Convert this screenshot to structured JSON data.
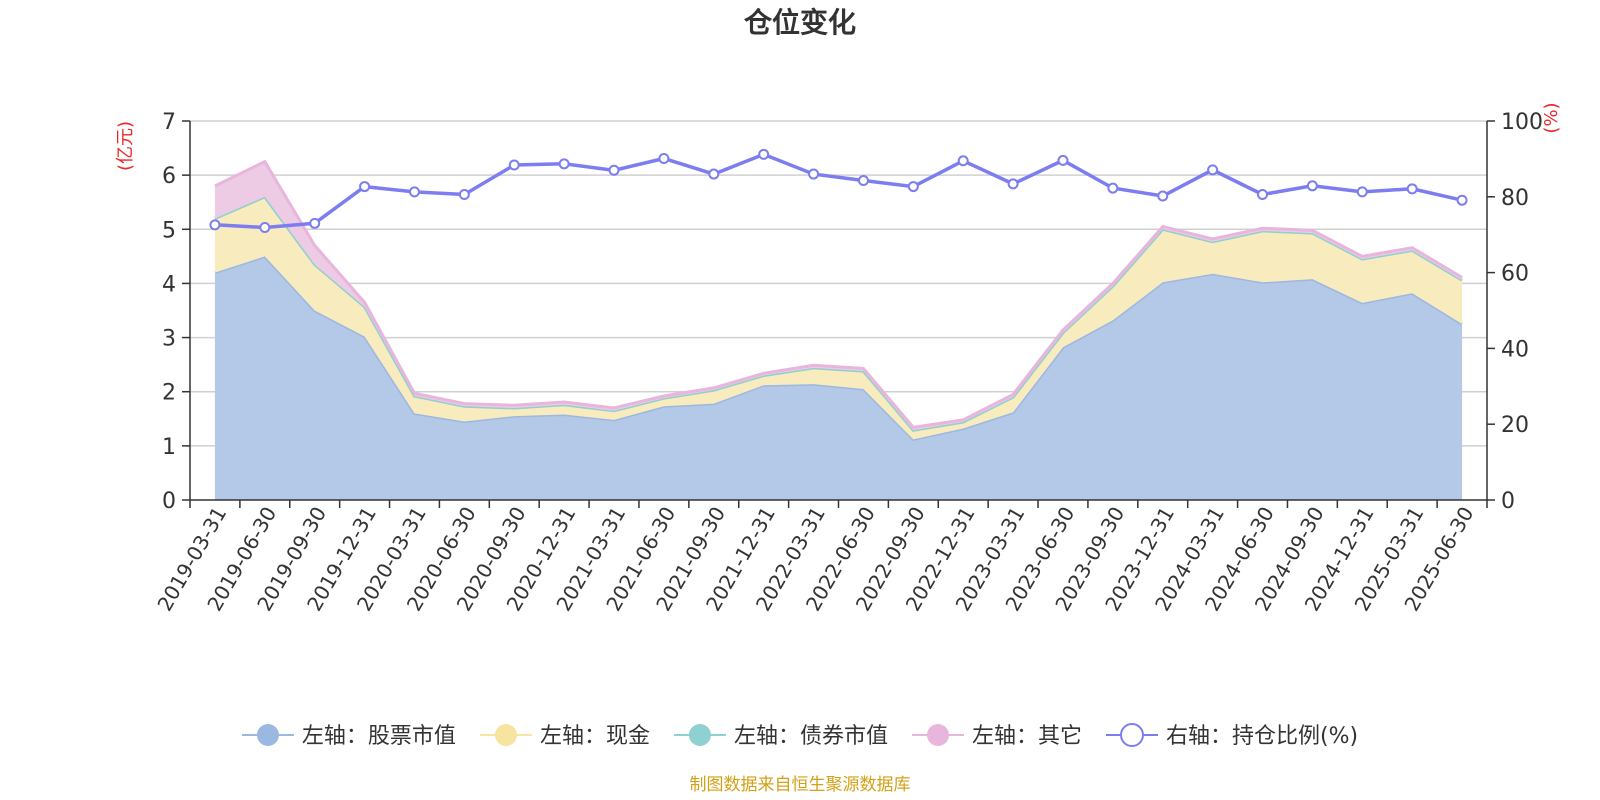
{
  "chart_data": {
    "type": "area",
    "title": "仓位变化",
    "left_unit": "(亿元)",
    "right_unit": "(%)",
    "ylim_left": [
      0,
      7
    ],
    "yticks_left": [
      0,
      1,
      2,
      3,
      4,
      5,
      6,
      7
    ],
    "ylim_right": [
      0,
      100
    ],
    "yticks_right": [
      0,
      20,
      40,
      60,
      80,
      100
    ],
    "grid": true,
    "legend_position": "bottom",
    "categories": [
      "2019-03-31",
      "2019-06-30",
      "2019-09-30",
      "2019-12-31",
      "2020-03-31",
      "2020-06-30",
      "2020-09-30",
      "2020-12-31",
      "2021-03-31",
      "2021-06-30",
      "2021-09-30",
      "2021-12-31",
      "2022-03-31",
      "2022-06-30",
      "2022-09-30",
      "2022-12-31",
      "2023-03-31",
      "2023-06-30",
      "2023-09-30",
      "2023-12-31",
      "2024-03-31",
      "2024-06-30",
      "2024-09-30",
      "2024-12-31",
      "2025-03-31",
      "2025-06-30"
    ],
    "series": [
      {
        "name": "左轴：股票市值",
        "axis": "left",
        "stack": true,
        "color": "#9bb8e0",
        "fill": "#b4c8e8",
        "values": [
          4.2,
          4.5,
          3.5,
          3.02,
          1.6,
          1.45,
          1.55,
          1.58,
          1.48,
          1.73,
          1.78,
          2.12,
          2.14,
          2.05,
          1.12,
          1.32,
          1.62,
          2.82,
          3.32,
          4.02,
          4.18,
          4.02,
          4.08,
          3.64,
          3.82,
          3.25
        ]
      },
      {
        "name": "左轴：现金",
        "axis": "left",
        "stack": true,
        "color": "#f6e4a0",
        "fill": "#f8ebbd",
        "values": [
          1.0,
          1.1,
          0.85,
          0.55,
          0.32,
          0.28,
          0.15,
          0.18,
          0.17,
          0.15,
          0.25,
          0.18,
          0.3,
          0.33,
          0.17,
          0.12,
          0.28,
          0.27,
          0.63,
          0.98,
          0.59,
          0.95,
          0.85,
          0.81,
          0.79,
          0.81
        ]
      },
      {
        "name": "左轴：债券市值",
        "axis": "left",
        "stack": true,
        "color": "#8fd0d0",
        "fill": "#a8dcdc",
        "values": [
          0,
          0,
          0,
          0,
          0,
          0,
          0,
          0,
          0,
          0,
          0,
          0,
          0,
          0,
          0,
          0,
          0,
          0,
          0,
          0,
          0,
          0,
          0,
          0,
          0,
          0
        ]
      },
      {
        "name": "左轴：其它",
        "axis": "left",
        "stack": true,
        "color": "#e8b5dc",
        "fill": "#edcbe5",
        "values": [
          0.6,
          0.65,
          0.35,
          0.08,
          0.05,
          0.05,
          0.05,
          0.05,
          0.05,
          0.04,
          0.04,
          0.04,
          0.05,
          0.05,
          0.05,
          0.04,
          0.05,
          0.05,
          0.05,
          0.05,
          0.05,
          0.05,
          0.05,
          0.05,
          0.05,
          0.05
        ]
      },
      {
        "name": "右轴：持仓比例(%)",
        "axis": "right",
        "type": "line",
        "color": "#7b7df0",
        "values": [
          72.6,
          71.9,
          73.0,
          82.7,
          81.3,
          80.6,
          88.4,
          88.7,
          87.0,
          90.1,
          86.0,
          91.2,
          86.0,
          84.3,
          82.7,
          89.5,
          83.4,
          89.6,
          82.3,
          80.2,
          87.1,
          80.6,
          82.9,
          81.3,
          82.1,
          79.1
        ]
      }
    ]
  },
  "source_note": "制图数据来自恒生聚源数据库",
  "colors": {
    "left_unit": "#e8282b",
    "right_unit": "#e8282b",
    "source_note": "#d4a017",
    "axis": "#333333",
    "grid": "#d0d0d0"
  }
}
